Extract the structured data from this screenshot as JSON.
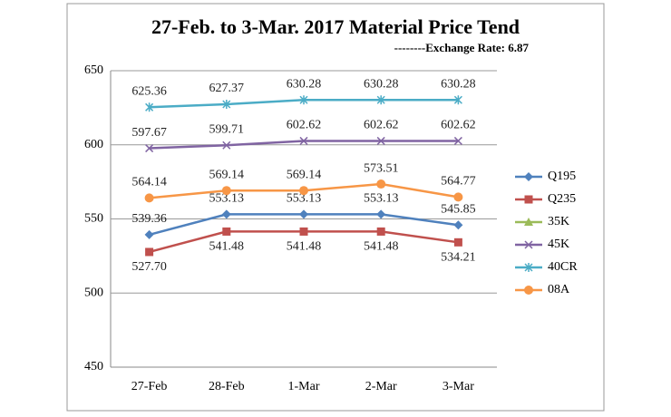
{
  "chart_data": {
    "type": "line",
    "title": "27-Feb. to 3-Mar. 2017 Material Price Tend",
    "subtitle": "--------Exchange Rate: 6.87",
    "categories": [
      "27-Feb",
      "28-Feb",
      "1-Mar",
      "2-Mar",
      "3-Mar"
    ],
    "ylim": [
      450,
      650
    ],
    "yticks": [
      450,
      500,
      550,
      600,
      650
    ],
    "grid": true,
    "legend": "right",
    "series": [
      {
        "name": "Q195",
        "color": "#4f81bd",
        "marker": "diamond",
        "values": [
          539.36,
          553.13,
          553.13,
          553.13,
          545.85
        ]
      },
      {
        "name": "Q235",
        "color": "#c0504d",
        "marker": "square",
        "label_position": "below",
        "values": [
          527.7,
          541.48,
          541.48,
          541.48,
          534.21
        ],
        "value_labels": [
          "527.70",
          "541.48",
          "541.48",
          "541.48",
          "534.21"
        ]
      },
      {
        "name": "35K",
        "color": "#9bbb59",
        "marker": "triangle",
        "values": [
          null,
          null,
          null,
          null,
          null
        ]
      },
      {
        "name": "45K",
        "color": "#8064a2",
        "marker": "x",
        "values": [
          597.67,
          599.71,
          602.62,
          602.62,
          602.62
        ]
      },
      {
        "name": "40CR",
        "color": "#4bacc6",
        "marker": "star",
        "values": [
          625.36,
          627.37,
          630.28,
          630.28,
          630.28
        ]
      },
      {
        "name": "08A",
        "color": "#f79646",
        "marker": "circle",
        "values": [
          564.14,
          569.14,
          569.14,
          573.51,
          564.77
        ]
      }
    ]
  }
}
